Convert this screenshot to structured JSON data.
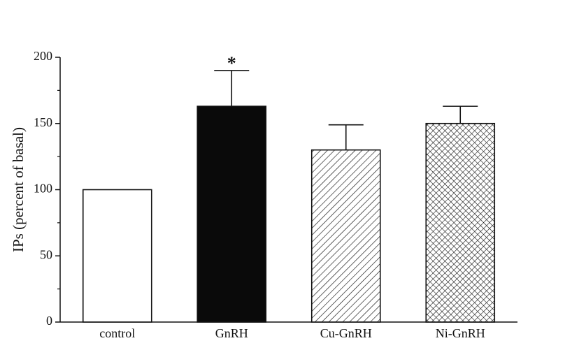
{
  "chart_data": {
    "type": "bar",
    "title": "",
    "xlabel": "",
    "ylabel": "IPs (percent of basal)",
    "ylim": [
      0,
      200
    ],
    "yticks": [
      0,
      50,
      100,
      150,
      200
    ],
    "ytick_labels": [
      "0",
      "50",
      "100",
      "150",
      "200"
    ],
    "grid": false,
    "legend": "none",
    "categories": [
      "control",
      "GnRH",
      "Cu-GnRH",
      "Ni-GnRH"
    ],
    "values": [
      100,
      163,
      130,
      150
    ],
    "error_upper": [
      0,
      27,
      19,
      13
    ],
    "fills": [
      "white",
      "solid-black",
      "diagonal-hatch",
      "cross-hatch"
    ],
    "annotations": [
      {
        "category": "GnRH",
        "text": "*"
      }
    ],
    "colors": {
      "ink": "#111111",
      "background": "#ffffff"
    }
  }
}
